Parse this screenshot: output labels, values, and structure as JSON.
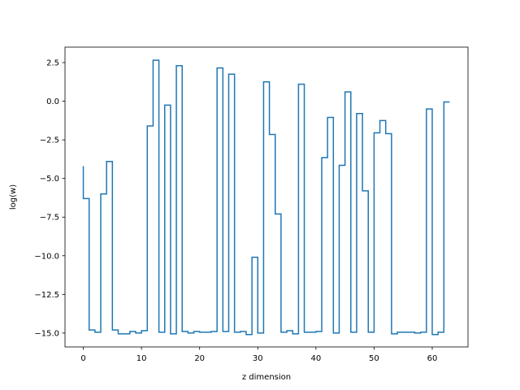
{
  "chart_data": {
    "type": "line",
    "drawstyle": "steps",
    "title": "",
    "xlabel": "z dimension",
    "ylabel": "log(w)",
    "xlim": [
      -3.15,
      66.15
    ],
    "ylim": [
      -15.9,
      3.5
    ],
    "xticks": [
      0,
      10,
      20,
      30,
      40,
      50,
      60
    ],
    "xtick_labels": [
      "0",
      "10",
      "20",
      "30",
      "40",
      "50",
      "60"
    ],
    "yticks": [
      2.5,
      0.0,
      -2.5,
      -5.0,
      -7.5,
      -10.0,
      -12.5,
      -15.0
    ],
    "ytick_labels": [
      "2.5",
      "0.0",
      "−2.5",
      "−5.0",
      "−7.5",
      "−10.0",
      "−12.5",
      "−15.0"
    ],
    "grid": false,
    "series": [
      {
        "color": "#1f77b4",
        "x": [
          0,
          1,
          2,
          3,
          4,
          5,
          6,
          7,
          8,
          9,
          10,
          11,
          12,
          13,
          14,
          15,
          16,
          17,
          18,
          19,
          20,
          21,
          22,
          23,
          24,
          25,
          26,
          27,
          28,
          29,
          30,
          31,
          32,
          33,
          34,
          35,
          36,
          37,
          38,
          39,
          40,
          41,
          42,
          43,
          44,
          45,
          46,
          47,
          48,
          49,
          50,
          51,
          52,
          53,
          54,
          55,
          56,
          57,
          58,
          59,
          60,
          61,
          62,
          63
        ],
        "values": [
          -4.2,
          -6.3,
          -14.8,
          -14.95,
          -6.0,
          -3.9,
          -14.8,
          -15.05,
          -15.05,
          -14.9,
          -15.0,
          -14.85,
          -1.6,
          2.65,
          -14.95,
          -0.25,
          -15.05,
          2.3,
          -14.9,
          -15.0,
          -14.9,
          -14.95,
          -14.95,
          -14.9,
          2.15,
          -14.9,
          1.75,
          -14.95,
          -14.9,
          -15.1,
          -10.1,
          -15.0,
          1.25,
          -2.15,
          -7.3,
          -14.95,
          -14.85,
          -15.05,
          1.1,
          -14.95,
          -14.95,
          -14.9,
          -3.65,
          -1.05,
          -15.0,
          -4.15,
          0.6,
          -14.95,
          -0.8,
          -5.8,
          -14.95,
          -2.05,
          -1.25,
          -2.1,
          -15.05,
          -14.95,
          -14.95,
          -14.95,
          -15.0,
          -14.95,
          -0.5,
          -15.1,
          -14.95,
          -0.05
        ]
      }
    ]
  }
}
